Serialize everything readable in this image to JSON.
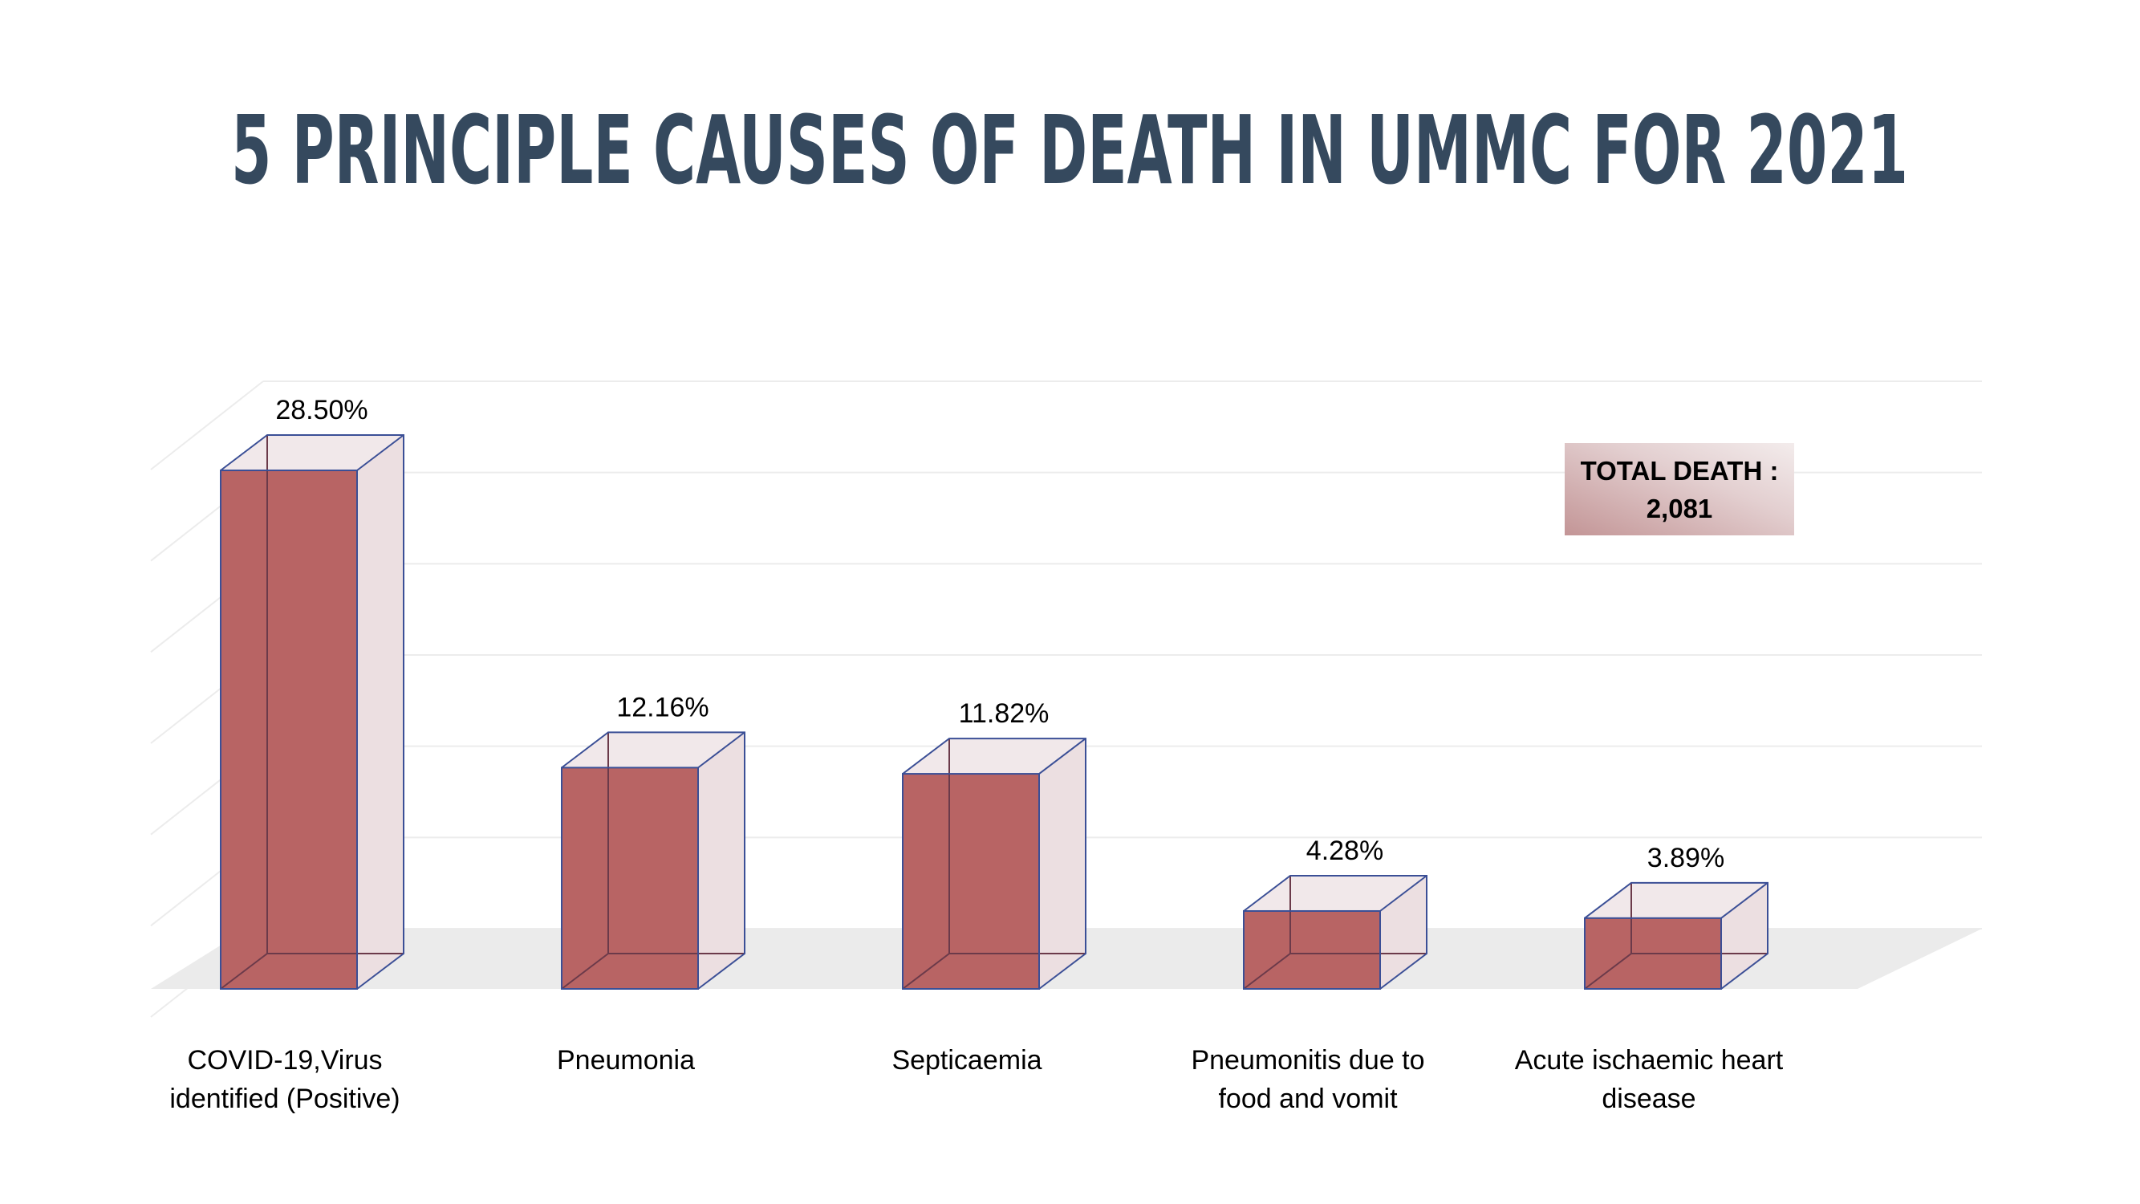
{
  "title": "5 PRINCIPLE CAUSES OF DEATH IN UMMC FOR 2021",
  "total_box": {
    "line1": "TOTAL DEATH :",
    "line2": "2,081"
  },
  "colors": {
    "title": "#35495e",
    "bar_fill": "#b86464",
    "bar_edge": "#3b4f96",
    "ghost_fill": "#ecdfe1",
    "floor": "#ebebeb",
    "gridline": "#ececec"
  },
  "chart_data": {
    "type": "bar",
    "style": "3d-column",
    "title": "5 PRINCIPLE CAUSES OF DEATH IN UMMC FOR 2021",
    "xlabel": "",
    "ylabel": "",
    "ylim": [
      0,
      0.3
    ],
    "grid": true,
    "categories": [
      [
        "COVID-19,Virus",
        "identified (Positive)"
      ],
      [
        "Pneumonia"
      ],
      [
        "Septicaemia"
      ],
      [
        "Pneumonitis due to",
        "food and vomit"
      ],
      [
        "Acute ischaemic heart",
        "disease"
      ]
    ],
    "values": [
      0.285,
      0.1216,
      0.1182,
      0.0428,
      0.0389
    ],
    "data_labels": [
      "28.50%",
      "12.16%",
      "11.82%",
      "4.28%",
      "3.89%"
    ]
  }
}
